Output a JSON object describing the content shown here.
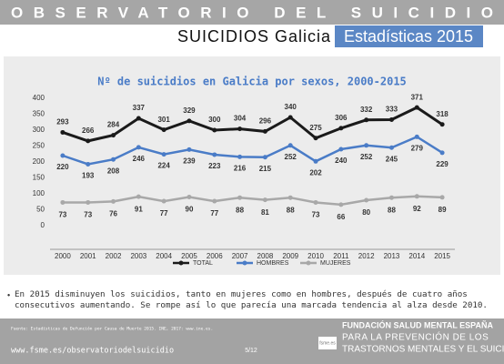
{
  "header": {
    "banner": "OBSERVATORIO DEL SUICIDIO",
    "title": "SUICIDIOS Galicia",
    "subtitle": "Estadísticas 2015"
  },
  "chart_data": {
    "type": "line",
    "title": "Nº de suicidios en Galicia por sexos, 2000-2015",
    "categories": [
      "2000",
      "2001",
      "2002",
      "2003",
      "2004",
      "2005",
      "2006",
      "2007",
      "2008",
      "2009",
      "2010",
      "2011",
      "2012",
      "2013",
      "2014",
      "2015"
    ],
    "series": [
      {
        "name": "TOTAL",
        "color": "#1a1a1a",
        "values": [
          293,
          266,
          284,
          337,
          301,
          329,
          300,
          304,
          296,
          340,
          275,
          306,
          332,
          333,
          371,
          318
        ]
      },
      {
        "name": "HOMBRES",
        "color": "#4a7cc7",
        "values": [
          220,
          193,
          208,
          246,
          224,
          239,
          223,
          216,
          215,
          252,
          202,
          240,
          252,
          245,
          279,
          229
        ]
      },
      {
        "name": "MUJERES",
        "color": "#a8a8a8",
        "values": [
          73,
          73,
          76,
          91,
          77,
          90,
          77,
          88,
          81,
          88,
          73,
          66,
          80,
          88,
          92,
          89
        ]
      }
    ],
    "ylim": [
      0,
      400
    ],
    "yticks": [
      0,
      50,
      100,
      150,
      200,
      250,
      300,
      350,
      400
    ],
    "grid": false,
    "legend": "bottom"
  },
  "note": "En 2015 disminuyen los suicidios, tanto en mujeres como en hombres, después de cuatro años consecutivos aumentando. Se rompe así lo que parecía una marcada tendencia al alza desde 2010.",
  "footer": {
    "source": "Fuente: Estadísticas de Defunción por Causa de Muerte 2015. INE, 2017: www.ine.es.",
    "url": "www.fsme.es/observatoriodelsuicidio",
    "page": "5/12",
    "logo": "fsme.es",
    "org": [
      "FUNDACIÓN SALUD MENTAL ESPAÑA",
      "PARA LA PREVENCIÓN DE LOS",
      "TRASTORNOS MENTALES Y EL SUICIDIO"
    ]
  }
}
